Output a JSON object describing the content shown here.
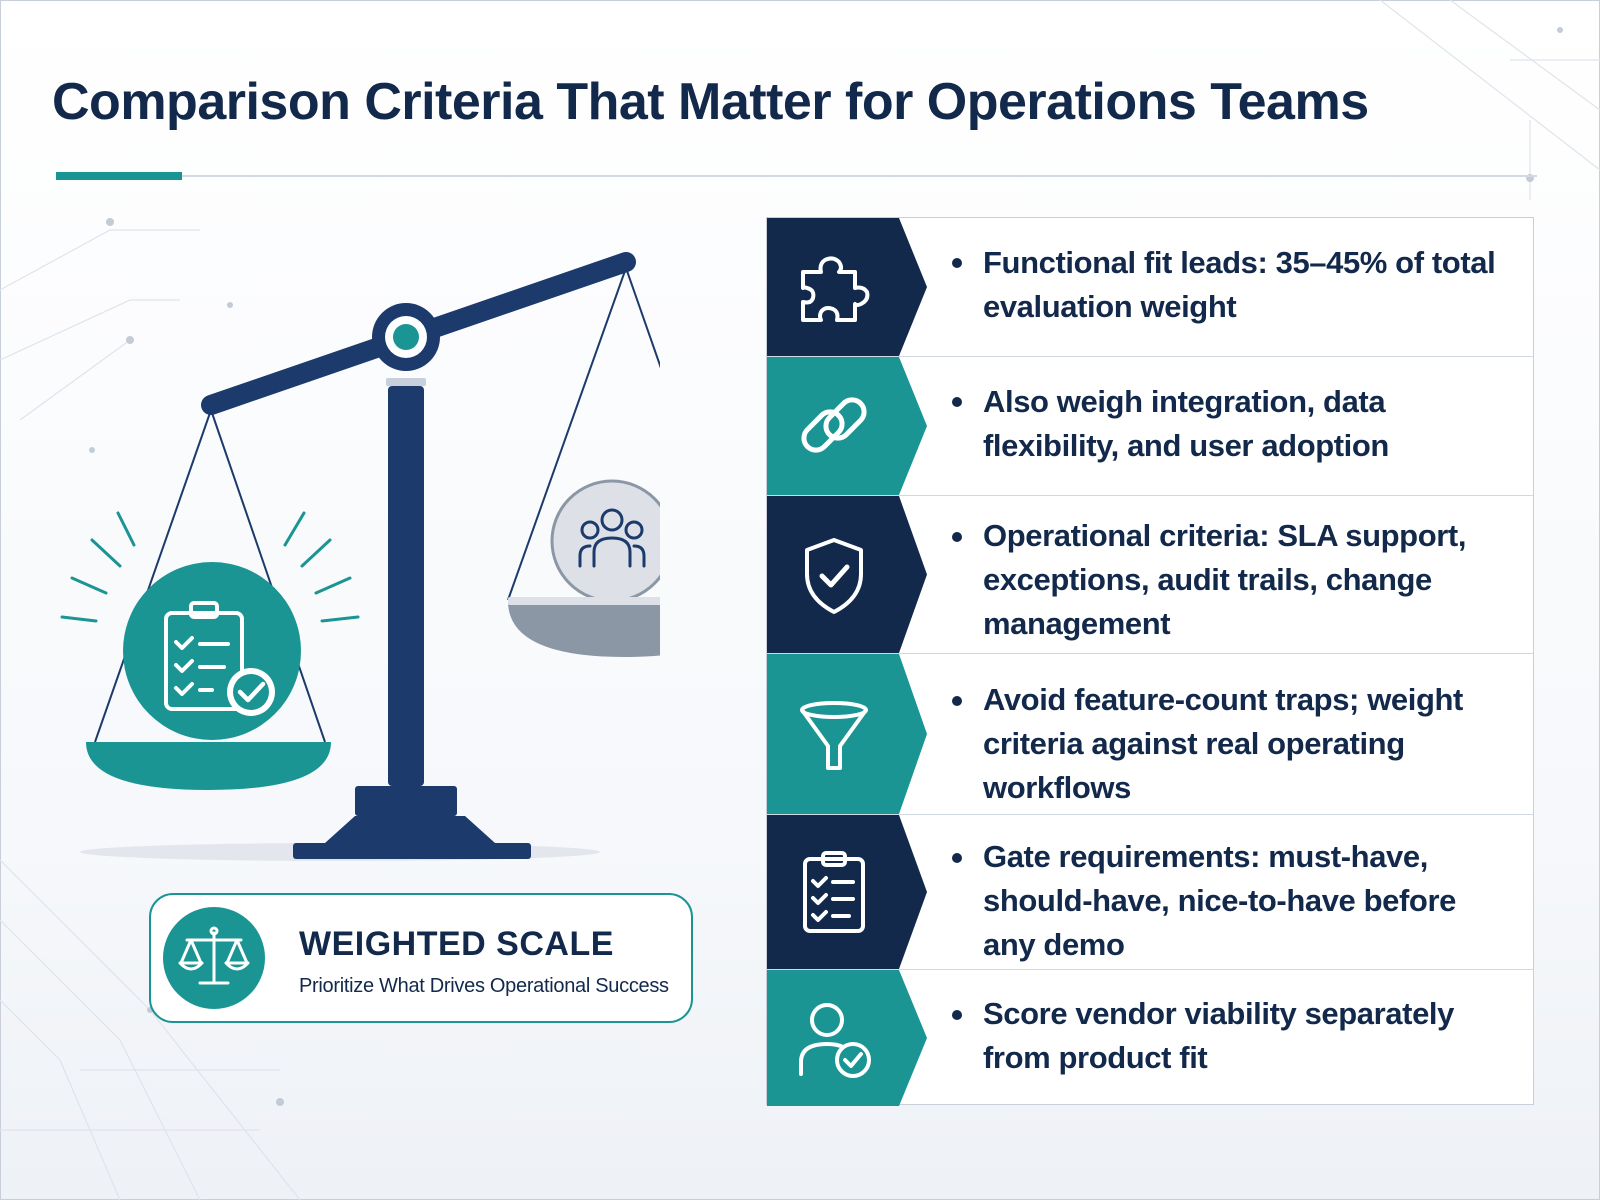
{
  "title": "Comparison Criteria That Matter for Operations Teams",
  "colors": {
    "navy": "#13294b",
    "teal": "#1a9594",
    "gray": "#8c97a6"
  },
  "scale": {
    "left_pan_icon": "clipboard-check-icon",
    "right_pan_icon": "users-icon",
    "tilt": "left side heavier"
  },
  "badge": {
    "icon": "scales-icon",
    "title": "WEIGHTED SCALE",
    "subtitle": "Prioritize What Drives Operational Success"
  },
  "criteria": [
    {
      "icon": "puzzle-piece-icon",
      "tone": "navy",
      "text": "Functional fit leads: 35–45% of total evaluation weight"
    },
    {
      "icon": "link-icon",
      "tone": "teal",
      "text": "Also weigh integration, data flexibility, and user adoption"
    },
    {
      "icon": "shield-check-icon",
      "tone": "navy",
      "text": "Operational criteria: SLA support, exceptions, audit trails, change management"
    },
    {
      "icon": "funnel-icon",
      "tone": "teal",
      "text": "Avoid feature-count traps; weight criteria against real operating workflows"
    },
    {
      "icon": "checklist-icon",
      "tone": "navy",
      "text": "Gate requirements: must-have, should-have, nice-to-have before any demo"
    },
    {
      "icon": "user-check-icon",
      "tone": "teal",
      "text": "Score vendor viability separately from product fit"
    }
  ]
}
